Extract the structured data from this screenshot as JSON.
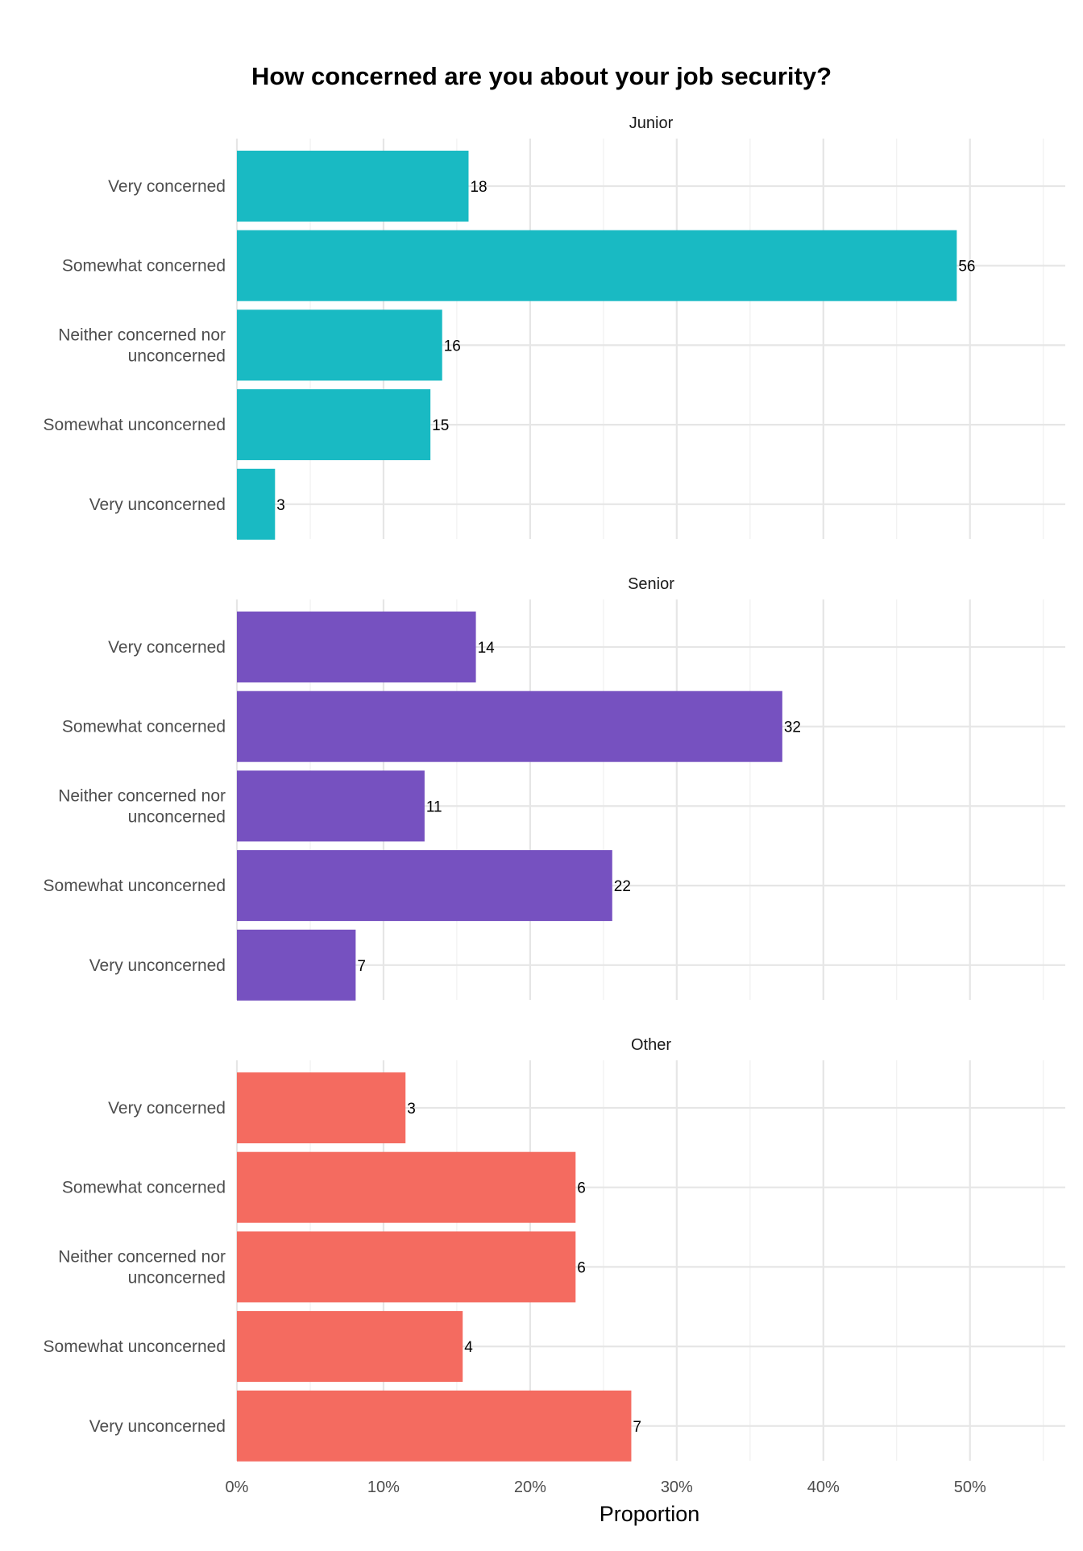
{
  "chart_data": {
    "type": "bar",
    "orientation": "horizontal",
    "title": "How concerned are you about your job security?",
    "xlabel": "Proportion",
    "ylabel": "",
    "xlim": [
      0,
      0.565
    ],
    "x_ticks": [
      0,
      0.1,
      0.2,
      0.3,
      0.4,
      0.5
    ],
    "x_tick_labels": [
      "0%",
      "10%",
      "20%",
      "30%",
      "40%",
      "50%"
    ],
    "grid": true,
    "legend": "none",
    "categories": [
      "Very concerned",
      "Somewhat concerned",
      "Neither concerned nor unconcerned",
      "Somewhat unconcerned",
      "Very unconcerned"
    ],
    "facets": [
      {
        "name": "Junior",
        "color": "#19BAC3",
        "counts": [
          18,
          56,
          16,
          15,
          3
        ],
        "proportions": [
          0.158,
          0.491,
          0.14,
          0.132,
          0.026
        ]
      },
      {
        "name": "Senior",
        "color": "#7651C0",
        "counts": [
          14,
          32,
          11,
          22,
          7
        ],
        "proportions": [
          0.163,
          0.372,
          0.128,
          0.256,
          0.081
        ]
      },
      {
        "name": "Other",
        "color": "#F46B60",
        "counts": [
          3,
          6,
          6,
          4,
          7
        ],
        "proportions": [
          0.115,
          0.231,
          0.231,
          0.154,
          0.269
        ]
      }
    ]
  }
}
